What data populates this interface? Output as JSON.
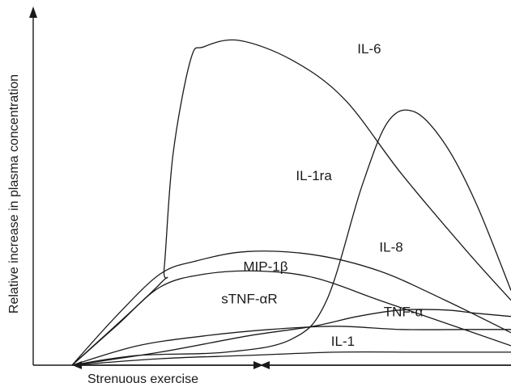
{
  "chart_data": {
    "type": "line",
    "title": "",
    "ylabel": "Relative increase in plasma concentration",
    "xlabel": "Strenuous exercise",
    "x_range": [
      0,
      100
    ],
    "y_range": [
      0,
      100
    ],
    "series": [
      {
        "name": "IL-6",
        "x": [
          0,
          20,
          21,
          23,
          27,
          30,
          38,
          50,
          62,
          75,
          90,
          100
        ],
        "y": [
          0,
          25,
          30,
          65,
          94,
          98,
          100,
          94,
          82,
          59,
          35,
          20
        ]
      },
      {
        "name": "IL-1ra",
        "x": [
          0,
          15,
          35,
          50,
          58,
          66,
          72,
          78,
          85,
          92,
          100
        ],
        "y": [
          0,
          3,
          4,
          8,
          20,
          55,
          75,
          78,
          68,
          50,
          23
        ]
      },
      {
        "name": "IL-8",
        "x": [
          0,
          10,
          20,
          28,
          40,
          55,
          70,
          85,
          100
        ],
        "y": [
          0,
          15,
          28,
          32,
          35,
          34,
          29,
          20,
          10
        ]
      },
      {
        "name": "MIP-1β",
        "x": [
          0,
          10,
          20,
          30,
          42,
          55,
          70,
          85,
          100
        ],
        "y": [
          0,
          12,
          24,
          28,
          29,
          27,
          20,
          13,
          6
        ]
      },
      {
        "name": "sTNF-αR",
        "x": [
          0,
          20,
          40,
          55,
          65,
          75,
          85,
          92,
          100
        ],
        "y": [
          0,
          4,
          9,
          12,
          15,
          17,
          17,
          16,
          15
        ]
      },
      {
        "name": "TNF-α",
        "x": [
          0,
          15,
          30,
          45,
          60,
          75,
          90,
          100
        ],
        "y": [
          0,
          6,
          9,
          11,
          12,
          11,
          11,
          11
        ]
      },
      {
        "name": "IL-1",
        "x": [
          0,
          20,
          40,
          60,
          80,
          100
        ],
        "y": [
          0,
          2,
          3,
          4,
          4,
          4
        ]
      }
    ],
    "labels": [
      {
        "text": "IL-6",
        "x": 65,
        "y": 96
      },
      {
        "text": "IL-1ra",
        "x": 51,
        "y": 57
      },
      {
        "text": "IL-8",
        "x": 70,
        "y": 35
      },
      {
        "text": "MIP-1β",
        "x": 39,
        "y": 29
      },
      {
        "text": "sTNF-αR",
        "x": 34,
        "y": 19
      },
      {
        "text": "TNF-α",
        "x": 71,
        "y": 15
      },
      {
        "text": "IL-1",
        "x": 59,
        "y": 6
      }
    ]
  }
}
